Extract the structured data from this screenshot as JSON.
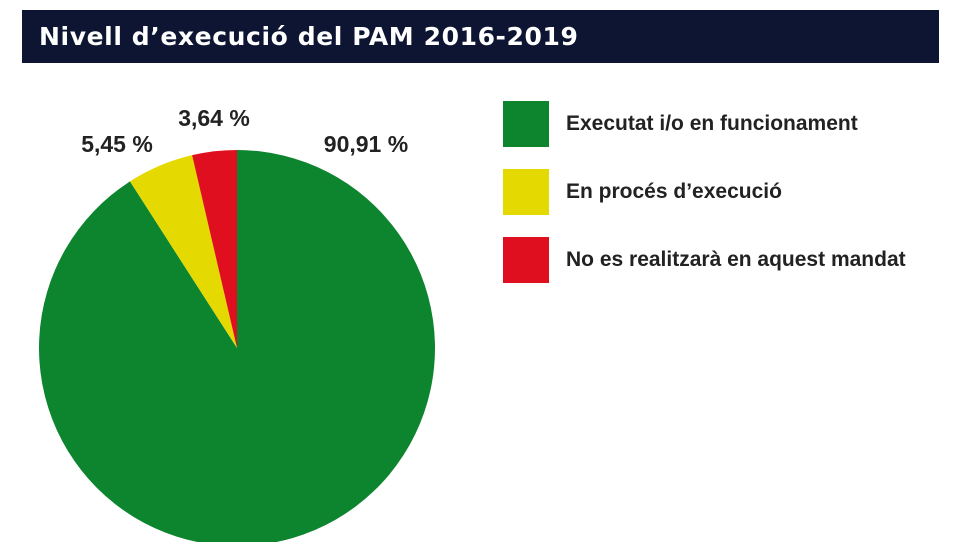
{
  "title": "Nivell d’execució del PAM 2016-2019",
  "chart_data": {
    "type": "pie",
    "title": "Nivell d’execució del PAM 2016-2019",
    "slices": [
      {
        "label": "Executat i/o en funcionament",
        "value": 90.91,
        "value_label": "90,91 %",
        "color": "#0c852e"
      },
      {
        "label": "En procés d’execució",
        "value": 5.45,
        "value_label": "5,45 %",
        "color": "#e4d900"
      },
      {
        "label": "No es realitzarà en aquest mandat",
        "value": 3.64,
        "value_label": "3,64 %",
        "color": "#df0f1f"
      }
    ],
    "legend_position": "right"
  }
}
